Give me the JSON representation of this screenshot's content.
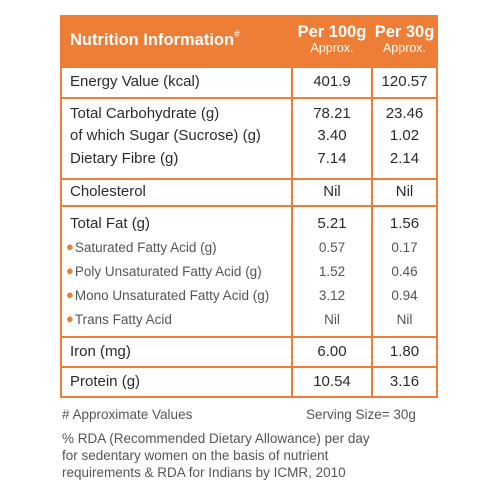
{
  "header": {
    "title": "Nutrition Information",
    "title_mark": "#",
    "col1_main": "Per 100g",
    "col1_sub": "Approx.",
    "col2_main": "Per 30g",
    "col2_sub": "Approx."
  },
  "rows": [
    {
      "label": "Energy Value (kcal)",
      "v1": "401.9",
      "v2": "120.57"
    },
    {
      "label": "Total Carbohydrate (g)",
      "v1": "78.21",
      "v2": "23.46"
    },
    {
      "label": "of which Sugar (Sucrose) (g)",
      "v1": "3.40",
      "v2": "1.02"
    },
    {
      "label": "Dietary Fibre (g)",
      "v1": "7.14",
      "v2": "2.14"
    },
    {
      "label": "Cholesterol",
      "v1": "Nil",
      "v2": "Nil"
    },
    {
      "label": "Total Fat (g)",
      "v1": "5.21",
      "v2": "1.56"
    },
    {
      "label": "Saturated Fatty Acid (g)",
      "v1": "0.57",
      "v2": "0.17"
    },
    {
      "label": "Poly Unsaturated Fatty Acid (g)",
      "v1": "1.52",
      "v2": "0.46"
    },
    {
      "label": "Mono Unsaturated Fatty Acid (g)",
      "v1": "3.12",
      "v2": "0.94"
    },
    {
      "label": "Trans Fatty Acid",
      "v1": "Nil",
      "v2": "Nil"
    },
    {
      "label": "Iron (mg)",
      "v1": "6.00",
      "v2": "1.80"
    },
    {
      "label": "Protein (g)",
      "v1": "10.54",
      "v2": "3.16"
    }
  ],
  "footer": {
    "approx_note": "# Approximate Values",
    "serving_size": "Serving Size= 30g",
    "rda_line1": "% RDA (Recommended Dietary Allowance) per day",
    "rda_line2": "for sedentary women on the basis of nutrient",
    "rda_line3": "requirements & RDA for Indians by ICMR, 2010"
  },
  "colors": {
    "accent": "#ee7d36",
    "text": "#2b2b2b"
  }
}
